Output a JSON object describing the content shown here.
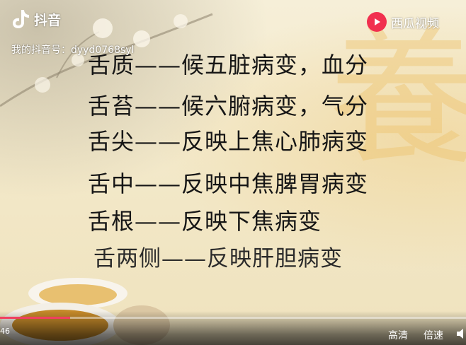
{
  "watermark": {
    "app_name": "抖音",
    "user_id": "我的抖音号：dyyd0768syl",
    "partner_name": "西瓜视频"
  },
  "slide": {
    "decorative_char": "養",
    "lines": [
      "舌质——候五脏病变，血分",
      "舌苔——候六腑病变，气分",
      "舌尖——反映上焦心肺病变",
      "舌中——反映中焦脾胃病变",
      "舌根——反映下焦病变",
      "舌两侧——反映肝胆病变"
    ]
  },
  "player": {
    "time_fragment": "46",
    "progress_fraction": 0.15,
    "quality_label": "高清",
    "speed_label": "倍速"
  },
  "colors": {
    "progress": "#f14060",
    "xigua_red": "#f1304f"
  },
  "icons": [
    "tiktok-logo-icon",
    "xigua-logo-icon",
    "volume-icon"
  ]
}
